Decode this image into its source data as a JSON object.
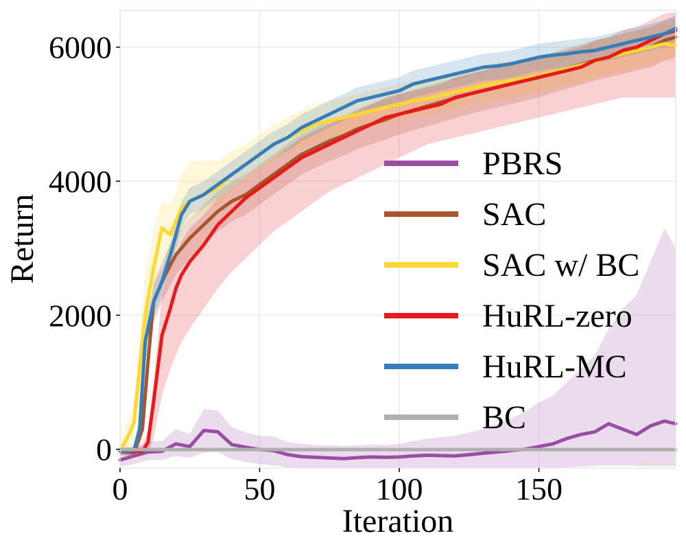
{
  "chart_data": {
    "type": "line",
    "title": "",
    "xlabel": "Iteration",
    "ylabel": "Return",
    "xlim": [
      0,
      199
    ],
    "ylim": [
      -280,
      6550
    ],
    "xticks": [
      0,
      50,
      100,
      150
    ],
    "xtick_labels": [
      "0",
      "50",
      "100",
      "150"
    ],
    "yticks": [
      0,
      2000,
      4000,
      6000
    ],
    "ytick_labels": [
      "0",
      "2000",
      "4000",
      "6000"
    ],
    "grid": true,
    "legend_position": "center-right",
    "series": [
      {
        "name": "PBRS",
        "color": "#984ea3",
        "x": [
          0,
          5,
          10,
          15,
          20,
          25,
          30,
          35,
          40,
          45,
          50,
          55,
          60,
          65,
          70,
          75,
          80,
          85,
          90,
          95,
          100,
          105,
          110,
          115,
          120,
          125,
          130,
          135,
          140,
          145,
          150,
          155,
          160,
          165,
          170,
          175,
          180,
          185,
          190,
          195,
          199
        ],
        "y": [
          -160,
          -100,
          -40,
          -30,
          80,
          40,
          280,
          260,
          70,
          30,
          -5,
          -20,
          -80,
          -110,
          -120,
          -130,
          -140,
          -125,
          -115,
          -120,
          -115,
          -100,
          -90,
          -95,
          -100,
          -80,
          -60,
          -40,
          -20,
          0,
          40,
          80,
          160,
          220,
          260,
          380,
          300,
          220,
          350,
          420,
          380
        ],
        "lower": [
          -260,
          -220,
          -160,
          -160,
          -100,
          -130,
          -50,
          -40,
          -150,
          -190,
          -220,
          -240,
          -270,
          -280,
          -280,
          -280,
          -280,
          -280,
          -280,
          -280,
          -280,
          -280,
          -280,
          -280,
          -280,
          -280,
          -280,
          -280,
          -280,
          -280,
          -280,
          -280,
          -270,
          -260,
          -250,
          -240,
          -240,
          -250,
          -250,
          -250,
          -250
        ],
        "upper": [
          -40,
          30,
          120,
          120,
          300,
          230,
          600,
          580,
          330,
          250,
          200,
          190,
          110,
          80,
          60,
          60,
          50,
          60,
          70,
          60,
          80,
          120,
          160,
          180,
          200,
          250,
          300,
          380,
          460,
          560,
          700,
          800,
          1000,
          1200,
          1400,
          1800,
          2100,
          2300,
          2800,
          3300,
          3000
        ]
      },
      {
        "name": "SAC",
        "color": "#a65628",
        "x": [
          0,
          5,
          8,
          10,
          12,
          15,
          18,
          20,
          25,
          30,
          35,
          40,
          45,
          50,
          55,
          60,
          65,
          70,
          75,
          80,
          85,
          90,
          95,
          100,
          105,
          110,
          115,
          120,
          125,
          130,
          135,
          140,
          145,
          150,
          155,
          160,
          165,
          170,
          175,
          180,
          185,
          190,
          195,
          199
        ],
        "y": [
          -30,
          -50,
          300,
          1300,
          2200,
          2500,
          2750,
          2900,
          3150,
          3350,
          3550,
          3700,
          3800,
          3950,
          4100,
          4250,
          4400,
          4500,
          4600,
          4680,
          4780,
          4850,
          4920,
          5000,
          5060,
          5120,
          5180,
          5240,
          5300,
          5350,
          5400,
          5450,
          5500,
          5550,
          5620,
          5680,
          5740,
          5800,
          5850,
          5900,
          5950,
          6000,
          6100,
          6150
        ],
        "lower": [
          -80,
          -120,
          150,
          1000,
          1900,
          2200,
          2450,
          2600,
          2850,
          3050,
          3250,
          3400,
          3500,
          3650,
          3800,
          3950,
          4100,
          4200,
          4300,
          4380,
          4480,
          4550,
          4620,
          4700,
          4760,
          4820,
          4880,
          4940,
          5000,
          5050,
          5100,
          5150,
          5200,
          5250,
          5320,
          5380,
          5440,
          5500,
          5550,
          5600,
          5650,
          5700,
          5800,
          5850
        ],
        "upper": [
          30,
          20,
          500,
          1600,
          2500,
          2800,
          3050,
          3200,
          3450,
          3650,
          3850,
          4000,
          4100,
          4250,
          4400,
          4550,
          4700,
          4800,
          4900,
          4980,
          5080,
          5150,
          5220,
          5300,
          5360,
          5420,
          5480,
          5540,
          5600,
          5650,
          5700,
          5750,
          5800,
          5850,
          5920,
          5980,
          6040,
          6100,
          6150,
          6200,
          6250,
          6300,
          6400,
          6450
        ]
      },
      {
        "name": "SAC w/ BC",
        "color": "#fdd835",
        "x": [
          0,
          3,
          5,
          7,
          9,
          12,
          15,
          18,
          20,
          22,
          25,
          30,
          35,
          40,
          45,
          50,
          55,
          60,
          65,
          70,
          75,
          80,
          85,
          90,
          95,
          100,
          105,
          110,
          115,
          120,
          125,
          130,
          135,
          140,
          145,
          150,
          155,
          160,
          165,
          170,
          175,
          180,
          185,
          190,
          195,
          199
        ],
        "y": [
          -30,
          200,
          400,
          1200,
          2000,
          2700,
          3300,
          3200,
          3400,
          3600,
          3700,
          3800,
          3900,
          4100,
          4250,
          4400,
          4550,
          4650,
          4750,
          4850,
          4900,
          4950,
          5000,
          5050,
          5100,
          5150,
          5200,
          5230,
          5280,
          5330,
          5380,
          5430,
          5470,
          5500,
          5530,
          5580,
          5620,
          5680,
          5730,
          5780,
          5850,
          5900,
          5950,
          6000,
          6050,
          6030
        ],
        "lower": [
          -150,
          0,
          150,
          800,
          1500,
          2200,
          2800,
          2800,
          3000,
          3250,
          3400,
          3550,
          3650,
          3850,
          4000,
          4150,
          4300,
          4400,
          4500,
          4600,
          4650,
          4700,
          4750,
          4800,
          4850,
          4900,
          4950,
          4980,
          5030,
          5080,
          5130,
          5180,
          5220,
          5250,
          5280,
          5330,
          5370,
          5430,
          5480,
          5530,
          5600,
          5650,
          5700,
          5750,
          5800,
          5780
        ],
        "upper": [
          100,
          450,
          700,
          1700,
          2600,
          3300,
          3700,
          3650,
          3850,
          4100,
          4300,
          4300,
          4300,
          4450,
          4550,
          4700,
          4850,
          4950,
          5050,
          5150,
          5200,
          5250,
          5300,
          5350,
          5400,
          5450,
          5500,
          5530,
          5580,
          5630,
          5680,
          5730,
          5770,
          5800,
          5830,
          5880,
          5920,
          5980,
          6030,
          6080,
          6150,
          6200,
          6250,
          6300,
          6350,
          6330
        ]
      },
      {
        "name": "HuRL-zero",
        "color": "#e41a1c",
        "x": [
          0,
          5,
          8,
          10,
          12,
          15,
          18,
          20,
          22,
          25,
          30,
          35,
          40,
          45,
          50,
          55,
          60,
          65,
          70,
          75,
          80,
          85,
          90,
          95,
          100,
          105,
          110,
          115,
          120,
          125,
          130,
          135,
          140,
          145,
          150,
          155,
          160,
          165,
          170,
          175,
          180,
          185,
          190,
          195,
          199
        ],
        "y": [
          -30,
          -30,
          -30,
          100,
          700,
          1700,
          2100,
          2400,
          2600,
          2800,
          3050,
          3350,
          3550,
          3750,
          3900,
          4050,
          4200,
          4350,
          4450,
          4550,
          4650,
          4750,
          4850,
          4950,
          5000,
          5050,
          5100,
          5150,
          5250,
          5300,
          5350,
          5400,
          5450,
          5500,
          5550,
          5600,
          5650,
          5700,
          5800,
          5850,
          5950,
          6000,
          6100,
          6200,
          6250
        ],
        "lower": [
          -80,
          -100,
          -100,
          -50,
          150,
          800,
          1200,
          1400,
          1600,
          1800,
          2100,
          2400,
          2650,
          2850,
          3050,
          3250,
          3400,
          3550,
          3700,
          3850,
          3950,
          4050,
          4150,
          4250,
          4350,
          4450,
          4550,
          4600,
          4650,
          4700,
          4750,
          4800,
          4850,
          4900,
          4950,
          5000,
          5050,
          5100,
          5150,
          5200,
          5250,
          5250,
          5250,
          5250,
          5250
        ],
        "upper": [
          30,
          30,
          50,
          300,
          1000,
          2300,
          2700,
          2900,
          3100,
          3300,
          3500,
          3750,
          3900,
          4050,
          4200,
          4350,
          4500,
          4650,
          4750,
          4850,
          4950,
          5050,
          5150,
          5250,
          5300,
          5350,
          5400,
          5450,
          5550,
          5600,
          5650,
          5700,
          5750,
          5800,
          5850,
          5900,
          5950,
          6000,
          6100,
          6150,
          6250,
          6300,
          6400,
          6500,
          6520
        ]
      },
      {
        "name": "HuRL-MC",
        "color": "#377eb8",
        "x": [
          0,
          3,
          5,
          7,
          9,
          12,
          15,
          18,
          20,
          22,
          25,
          30,
          35,
          40,
          45,
          50,
          55,
          60,
          65,
          70,
          75,
          80,
          85,
          90,
          95,
          100,
          105,
          110,
          115,
          120,
          125,
          130,
          135,
          140,
          145,
          150,
          155,
          160,
          165,
          170,
          175,
          180,
          185,
          190,
          195,
          199
        ],
        "y": [
          -30,
          -30,
          -10,
          300,
          1600,
          2200,
          2500,
          2900,
          3200,
          3500,
          3700,
          3800,
          3950,
          4100,
          4250,
          4400,
          4550,
          4650,
          4800,
          4900,
          5000,
          5100,
          5200,
          5250,
          5300,
          5350,
          5450,
          5500,
          5550,
          5600,
          5650,
          5700,
          5720,
          5750,
          5800,
          5850,
          5880,
          5900,
          5930,
          5950,
          6000,
          6050,
          6100,
          6150,
          6200,
          6280
        ],
        "lower": [
          -80,
          -80,
          -70,
          100,
          1300,
          1950,
          2300,
          2700,
          3000,
          3300,
          3500,
          3600,
          3750,
          3900,
          4050,
          4200,
          4350,
          4450,
          4600,
          4700,
          4800,
          4900,
          5000,
          5050,
          5100,
          5150,
          5250,
          5300,
          5350,
          5400,
          5450,
          5500,
          5520,
          5550,
          5600,
          5650,
          5680,
          5700,
          5730,
          5750,
          5800,
          5850,
          5900,
          5950,
          6000,
          6080
        ],
        "upper": [
          20,
          20,
          50,
          500,
          1900,
          2450,
          2700,
          3100,
          3400,
          3700,
          3900,
          4000,
          4150,
          4300,
          4450,
          4600,
          4750,
          4850,
          5000,
          5100,
          5200,
          5300,
          5400,
          5450,
          5500,
          5550,
          5650,
          5700,
          5750,
          5800,
          5850,
          5900,
          5920,
          5950,
          6000,
          6050,
          6080,
          6100,
          6130,
          6150,
          6200,
          6250,
          6300,
          6350,
          6400,
          6480
        ]
      },
      {
        "name": "BC",
        "color": "#b0b0b0",
        "x": [
          0,
          199
        ],
        "y": [
          -5,
          -5
        ],
        "lower": [
          -5,
          -5
        ],
        "upper": [
          -5,
          -5
        ]
      }
    ]
  }
}
